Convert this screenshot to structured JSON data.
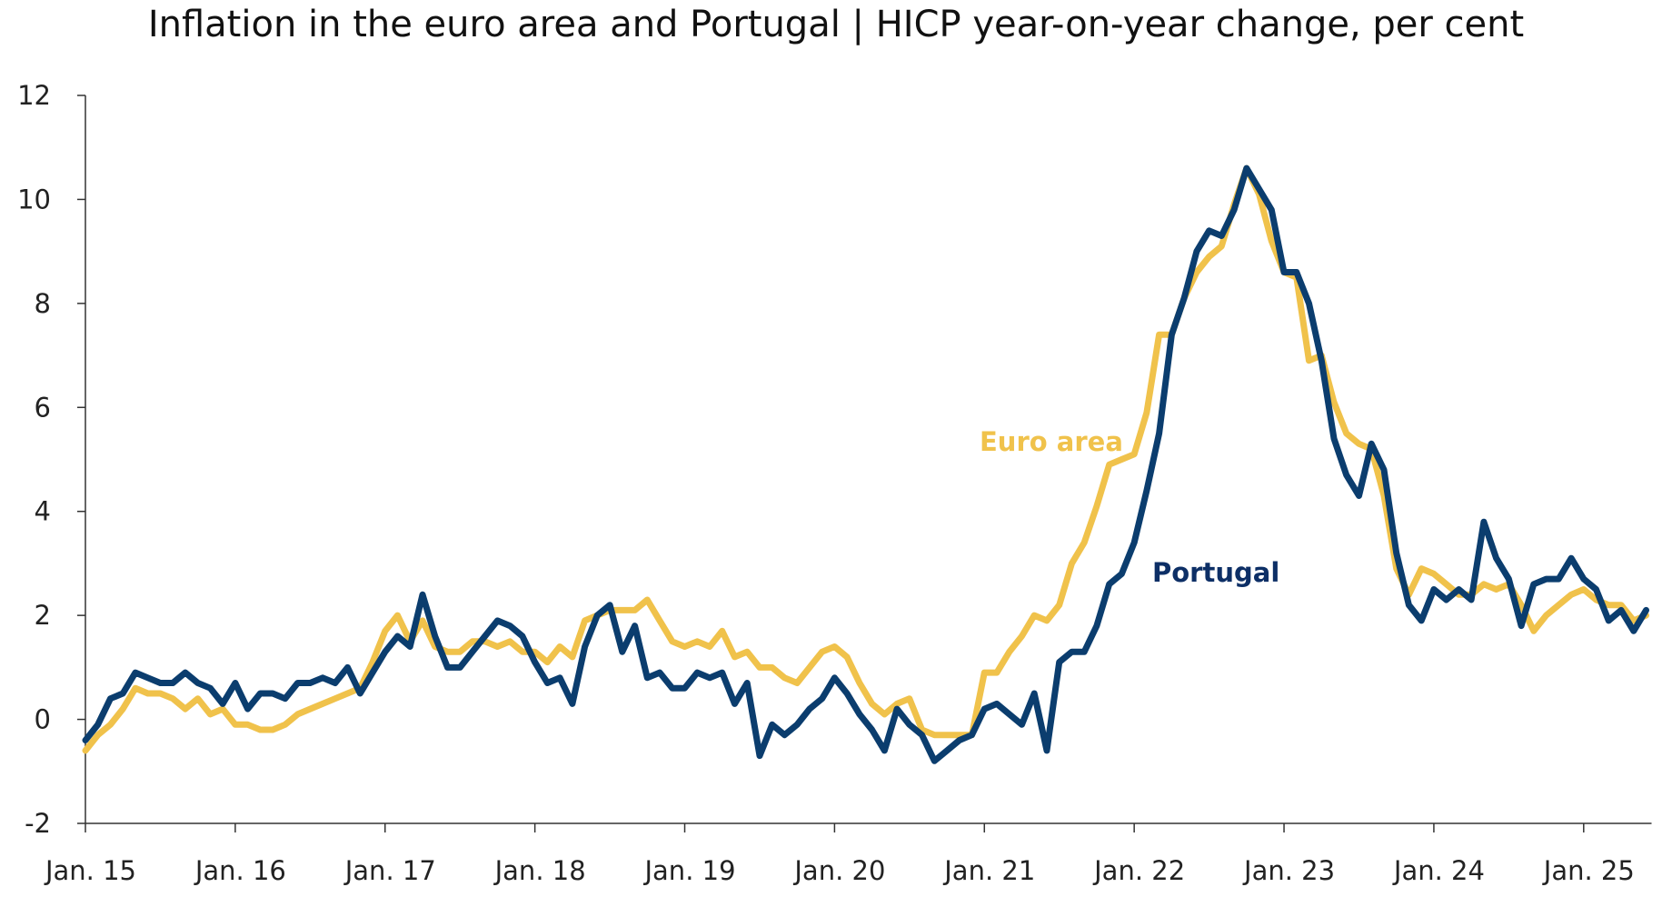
{
  "chart_data": {
    "type": "line",
    "title": "Inflation in the euro area and Portugal | HICP year-on-year change, per cent",
    "xlabel": "",
    "ylabel": "",
    "ylim": [
      -2,
      12
    ],
    "yticks": [
      -2,
      0,
      2,
      4,
      6,
      8,
      10,
      12
    ],
    "xticks": [
      "Jan. 15",
      "Jan. 16",
      "Jan. 17",
      "Jan. 18",
      "Jan. 19",
      "Jan. 20",
      "Jan. 21",
      "Jan. 22",
      "Jan. 23",
      "Jan. 24",
      "Jan. 25"
    ],
    "grid": false,
    "legend": "inline labels",
    "start": "2015-01",
    "series": [
      {
        "name": "Euro area",
        "label": "Euro area",
        "color": "#f0c24b",
        "values": [
          -0.6,
          -0.3,
          -0.1,
          0.2,
          0.6,
          0.5,
          0.5,
          0.4,
          0.2,
          0.4,
          0.1,
          0.2,
          -0.1,
          -0.1,
          -0.2,
          -0.2,
          -0.1,
          0.1,
          0.2,
          0.3,
          0.4,
          0.5,
          0.6,
          1.1,
          1.7,
          2.0,
          1.5,
          1.9,
          1.4,
          1.3,
          1.3,
          1.5,
          1.5,
          1.4,
          1.5,
          1.3,
          1.3,
          1.1,
          1.4,
          1.2,
          1.9,
          2.0,
          2.1,
          2.1,
          2.1,
          2.3,
          1.9,
          1.5,
          1.4,
          1.5,
          1.4,
          1.7,
          1.2,
          1.3,
          1.0,
          1.0,
          0.8,
          0.7,
          1.0,
          1.3,
          1.4,
          1.2,
          0.7,
          0.3,
          0.1,
          0.3,
          0.4,
          -0.2,
          -0.3,
          -0.3,
          -0.3,
          -0.3,
          0.9,
          0.9,
          1.3,
          1.6,
          2.0,
          1.9,
          2.2,
          3.0,
          3.4,
          4.1,
          4.9,
          5.0,
          5.1,
          5.9,
          7.4,
          7.4,
          8.1,
          8.6,
          8.9,
          9.1,
          9.9,
          10.6,
          10.1,
          9.2,
          8.6,
          8.5,
          6.9,
          7.0,
          6.1,
          5.5,
          5.3,
          5.2,
          4.3,
          2.9,
          2.4,
          2.9,
          2.8,
          2.6,
          2.4,
          2.4,
          2.6,
          2.5,
          2.6,
          2.2,
          1.7,
          2.0,
          2.2,
          2.4,
          2.5,
          2.3,
          2.2,
          2.2,
          1.9,
          2.0
        ]
      },
      {
        "name": "Portugal",
        "label": "Portugal",
        "color": "#0b3d6e",
        "values": [
          -0.4,
          -0.1,
          0.4,
          0.5,
          0.9,
          0.8,
          0.7,
          0.7,
          0.9,
          0.7,
          0.6,
          0.3,
          0.7,
          0.2,
          0.5,
          0.5,
          0.4,
          0.7,
          0.7,
          0.8,
          0.7,
          1.0,
          0.5,
          0.9,
          1.3,
          1.6,
          1.4,
          2.4,
          1.6,
          1.0,
          1.0,
          1.3,
          1.6,
          1.9,
          1.8,
          1.6,
          1.1,
          0.7,
          0.8,
          0.3,
          1.4,
          2.0,
          2.2,
          1.3,
          1.8,
          0.8,
          0.9,
          0.6,
          0.6,
          0.9,
          0.8,
          0.9,
          0.3,
          0.7,
          -0.7,
          -0.1,
          -0.3,
          -0.1,
          0.2,
          0.4,
          0.8,
          0.5,
          0.1,
          -0.2,
          -0.6,
          0.2,
          -0.1,
          -0.3,
          -0.8,
          -0.6,
          -0.4,
          -0.3,
          0.2,
          0.3,
          0.1,
          -0.1,
          0.5,
          -0.6,
          1.1,
          1.3,
          1.3,
          1.8,
          2.6,
          2.8,
          3.4,
          4.4,
          5.5,
          7.4,
          8.1,
          9.0,
          9.4,
          9.3,
          9.8,
          10.6,
          10.2,
          9.8,
          8.6,
          8.6,
          8.0,
          6.9,
          5.4,
          4.7,
          4.3,
          5.3,
          4.8,
          3.2,
          2.2,
          1.9,
          2.5,
          2.3,
          2.5,
          2.3,
          3.8,
          3.1,
          2.7,
          1.8,
          2.6,
          2.7,
          2.7,
          3.1,
          2.7,
          2.5,
          1.9,
          2.1,
          1.7,
          2.1
        ]
      }
    ]
  }
}
